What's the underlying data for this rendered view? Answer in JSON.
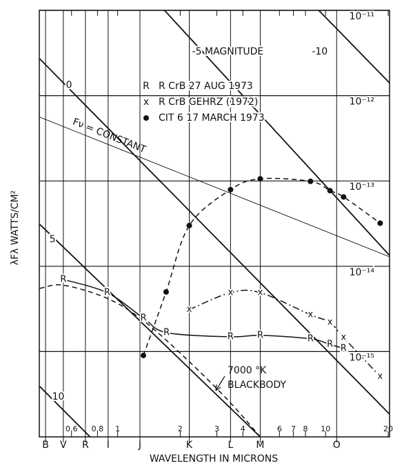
{
  "chart_data": {
    "type": "line",
    "xlabel": "WAVELENGTH IN MICRONS",
    "ylabel": "λFλ WATTS/CM²",
    "xscale": "log",
    "yscale": "log",
    "xlim": [
      0.42,
      20.3
    ],
    "ylim": [
      1e-16,
      1e-11
    ],
    "xticks": [
      0.6,
      0.8,
      1,
      2,
      3,
      4,
      6,
      7,
      8,
      10,
      20
    ],
    "xbands": [
      {
        "value": 0.45,
        "label": "B"
      },
      {
        "value": 0.548,
        "label": "V"
      },
      {
        "value": 0.7,
        "label": "R"
      },
      {
        "value": 0.9,
        "label": "I"
      },
      {
        "value": 1.28,
        "label": "J"
      },
      {
        "value": 2.21,
        "label": "K"
      },
      {
        "value": 3.49,
        "label": "L"
      },
      {
        "value": 4.85,
        "label": "M"
      },
      {
        "value": 11.3,
        "label": "O"
      }
    ],
    "yticks": [
      {
        "value": 1e-11,
        "label": "10⁻¹¹"
      },
      {
        "value": 1e-12,
        "label": "10⁻¹²"
      },
      {
        "value": 1e-13,
        "label": "10⁻¹³"
      },
      {
        "value": 1e-14,
        "label": "10⁻¹⁴"
      },
      {
        "value": 1e-15,
        "label": "10⁻¹⁵"
      }
    ],
    "grid": true,
    "color": "#111111",
    "series": [
      {
        "name": "R CrB 27 AUG 1973",
        "marker": "R",
        "dash": "solid",
        "x": [
          0.548,
          0.89,
          1.33,
          1.72,
          3.49,
          4.85,
          8.46,
          10.5,
          12.2
        ],
        "values": [
          7e-15,
          4.9e-15,
          2.47e-15,
          1.67e-15,
          1.49e-15,
          1.55e-15,
          1.41e-15,
          1.21e-15,
          1.09e-15
        ]
      },
      {
        "name": "R CrB GEHRZ (1972)",
        "marker": "x",
        "dash": "dashdot",
        "x": [
          2.21,
          3.49,
          4.85,
          8.46,
          10.5,
          12.2,
          18.3
        ],
        "values": [
          3.1e-15,
          4.9e-15,
          4.9e-15,
          2.7e-15,
          2.2e-15,
          1.46e-15,
          5.1e-16
        ]
      },
      {
        "name": "CIT 6 17 MARCH 1973",
        "marker": "•",
        "dash": "dashed",
        "x": [
          1.33,
          1.71,
          2.21,
          3.49,
          4.85,
          8.46,
          10.5,
          12.2,
          18.3
        ],
        "values": [
          9e-16,
          5e-15,
          3e-14,
          7.9e-14,
          1.06e-13,
          9.9e-14,
          7.7e-14,
          6.5e-14,
          3.2e-14
        ]
      }
    ],
    "magnitude_lines": [
      {
        "name": "-10",
        "x": [
          9.27,
          20.3
        ],
        "values": [
          1e-11,
          1.41e-12
        ]
      },
      {
        "name": "-5 MAGNITUDE",
        "x": [
          1.68,
          20.3
        ],
        "values": [
          1e-11,
          1.34e-14
        ]
      },
      {
        "name": "0",
        "x": [
          0.422,
          20.3
        ],
        "values": [
          2.7e-12,
          1.85e-16
        ]
      },
      {
        "name": "5",
        "x": [
          0.422,
          4.85
        ],
        "values": [
          3.1e-14,
          1e-16
        ]
      },
      {
        "name": "10",
        "x": [
          0.422,
          0.737
        ],
        "values": [
          3.9e-16,
          1e-16
        ]
      }
    ],
    "fnu_line": {
      "label": "Fν = CONSTANT",
      "x": [
        0.422,
        20.3
      ],
      "values": [
        5.6e-13,
        1.29e-14
      ]
    },
    "blackbody": {
      "label": [
        "7000 °K",
        "BLACKBODY"
      ],
      "x": [
        0.422,
        0.548,
        0.892,
        1.33,
        2.14,
        3.39,
        4.85
      ],
      "values": [
        5.5e-15,
        6e-15,
        4.2e-15,
        2.3e-15,
        8.2e-16,
        2.7e-16,
        1e-16
      ]
    }
  }
}
